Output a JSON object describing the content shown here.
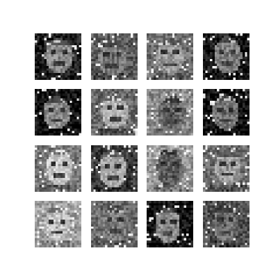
{
  "grid": {
    "rows": 4,
    "cols": 4,
    "tiles": [
      {
        "tone": "dark",
        "bg": "#1e1e1e",
        "face": "#8a8a8a"
      },
      {
        "tone": "mixed",
        "bg": "#5a5a5a",
        "face": "#7a7a7a"
      },
      {
        "tone": "gray",
        "bg": "#6e6e6e",
        "face": "#9a9a9a"
      },
      {
        "tone": "dark",
        "bg": "#141414",
        "face": "#7f7f7f"
      },
      {
        "tone": "dark",
        "bg": "#0e0e0e",
        "face": "#8c8c8c"
      },
      {
        "tone": "gray",
        "bg": "#666666",
        "face": "#b0b0b0"
      },
      {
        "tone": "mixed",
        "bg": "#8a8a8a",
        "face": "#6a6a6a"
      },
      {
        "tone": "dark",
        "bg": "#101010",
        "face": "#777777"
      },
      {
        "tone": "mixed",
        "bg": "#777777",
        "face": "#c8c8c8"
      },
      {
        "tone": "mixed",
        "bg": "#3a3a3a",
        "face": "#a8a8a8"
      },
      {
        "tone": "gray",
        "bg": "#9a9a9a",
        "face": "#5a5a5a"
      },
      {
        "tone": "gray",
        "bg": "#6a6a6a",
        "face": "#9e9e9e"
      },
      {
        "tone": "light",
        "bg": "#9f9f9f",
        "face": "#c4c4c4"
      },
      {
        "tone": "mixed",
        "bg": "#6a6a6a",
        "face": "#7c7c7c"
      },
      {
        "tone": "dark",
        "bg": "#111111",
        "face": "#8a8a8a"
      },
      {
        "tone": "mixed",
        "bg": "#4e4e4e",
        "face": "#6e6e6e"
      }
    ]
  }
}
